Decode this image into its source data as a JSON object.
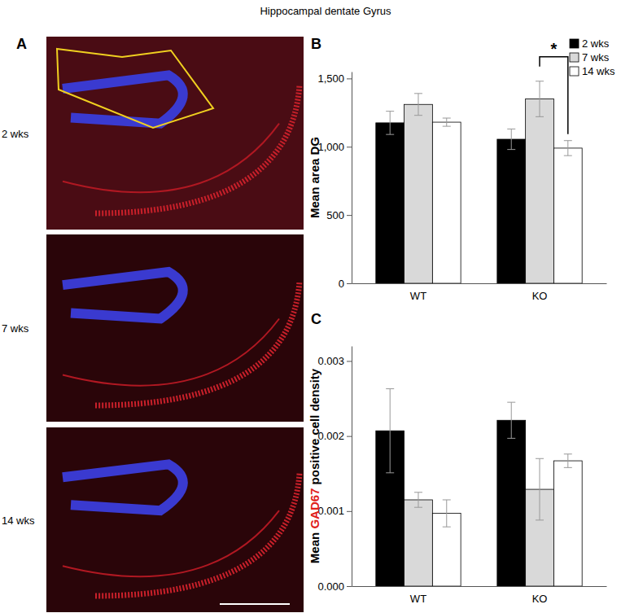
{
  "figure_title": "Hippocampal dentate Gyrus",
  "panel_a": {
    "label": "A",
    "row_labels": [
      "2 wks",
      "7 wks",
      "14 wks"
    ]
  },
  "chart_data": [
    {
      "type": "bar",
      "label": "B",
      "y_label": [
        "Mean area DG"
      ],
      "categories": [
        "WT",
        "KO"
      ],
      "series": [
        {
          "name": "2 wks",
          "color": "#000000",
          "values": [
            1175,
            1055
          ],
          "errors": [
            85,
            75
          ]
        },
        {
          "name": "7 wks",
          "color": "#d9d9d9",
          "values": [
            1310,
            1350
          ],
          "errors": [
            80,
            130
          ]
        },
        {
          "name": "14 wks",
          "color": "#ffffff",
          "values": [
            1180,
            990
          ],
          "errors": [
            30,
            55
          ]
        }
      ],
      "ylim": [
        0,
        1550
      ],
      "yticks": [
        0,
        500,
        {
          "value": 1000,
          "label": "1,000"
        },
        {
          "value": 1500,
          "label": "1,500"
        }
      ],
      "legend": "top-right",
      "annotations": [
        {
          "text": "*",
          "category": 1,
          "series": [
            1,
            2
          ]
        }
      ]
    },
    {
      "type": "bar",
      "label": "C",
      "y_label": [
        "Mean ",
        "GAD67",
        " positive cell density"
      ],
      "categories": [
        "WT",
        "KO"
      ],
      "series": [
        {
          "color": "#000000",
          "values": [
            0.00207,
            0.00221
          ],
          "errors": [
            0.00056,
            0.00024
          ]
        },
        {
          "color": "#d9d9d9",
          "values": [
            0.00115,
            0.00129
          ],
          "errors": [
            0.0001,
            0.00041
          ]
        },
        {
          "color": "#ffffff",
          "values": [
            0.00097,
            0.00167
          ],
          "errors": [
            0.00018,
            9e-05
          ]
        }
      ],
      "ylim": [
        0,
        0.0032
      ],
      "yticks": [
        {
          "value": 0,
          "label": "0.000"
        },
        0.001,
        0.002,
        0.003
      ]
    }
  ]
}
